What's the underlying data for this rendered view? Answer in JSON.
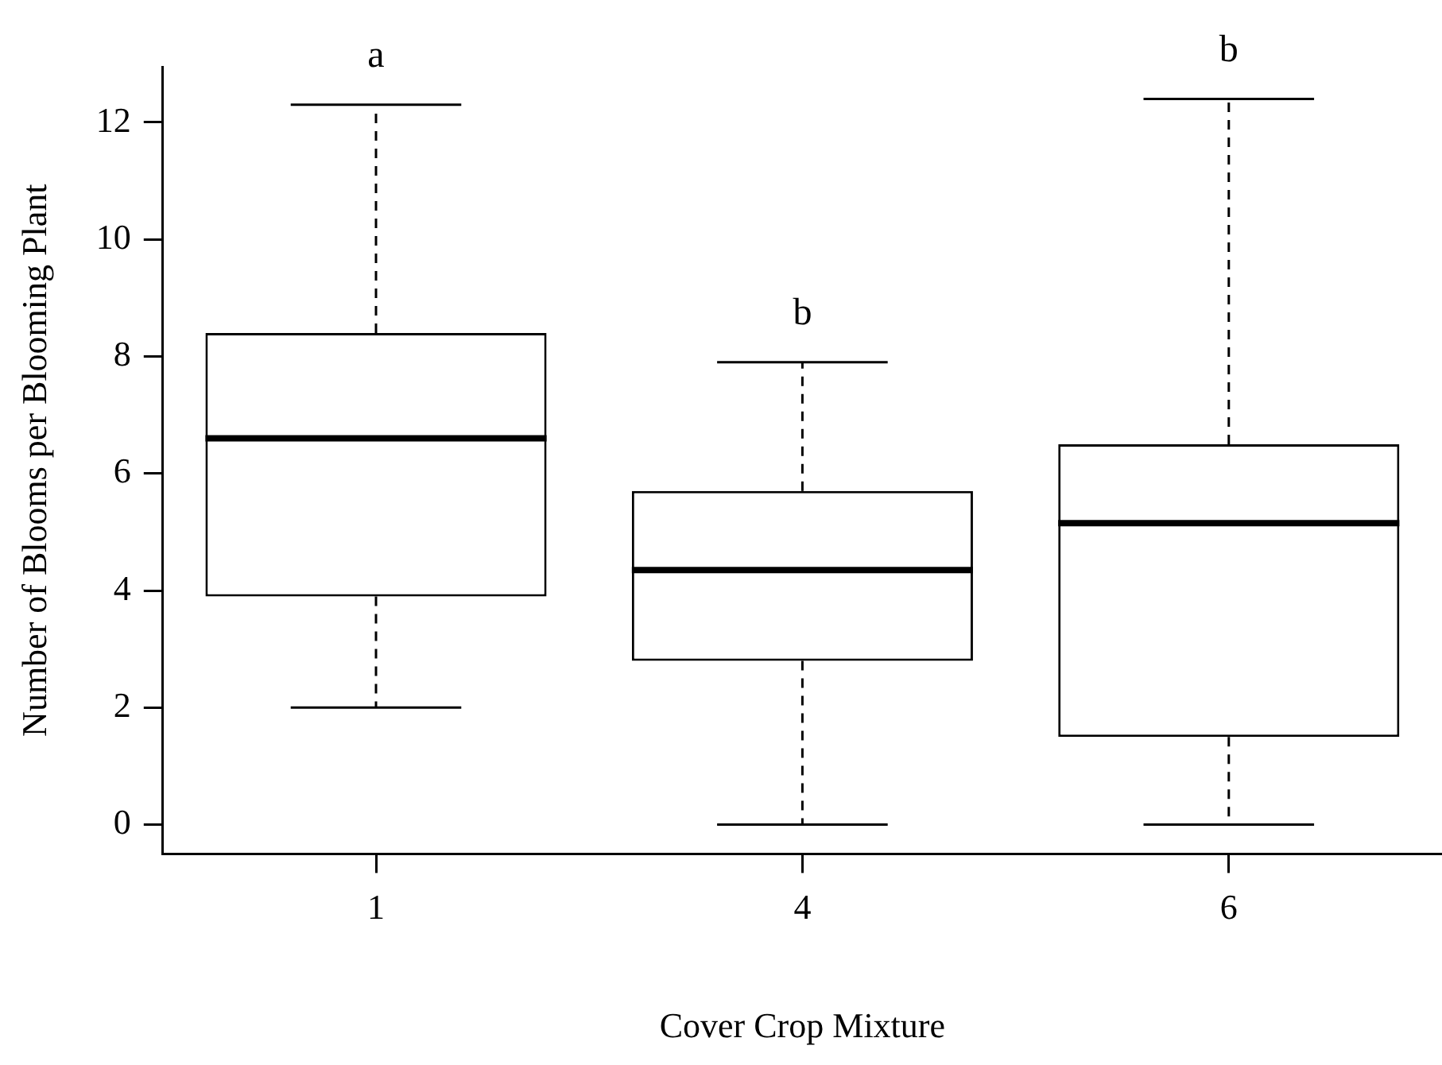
{
  "chart_data": {
    "type": "box",
    "xlabel": "Cover Crop Mixture",
    "ylabel": "Number of Blooms per Blooming Plant",
    "categories": [
      "1",
      "4",
      "6"
    ],
    "boxes": [
      {
        "low": 2.0,
        "q1": 3.9,
        "median": 6.6,
        "q3": 8.4,
        "high": 12.3
      },
      {
        "low": 0,
        "q1": 2.8,
        "median": 4.35,
        "q3": 5.7,
        "high": 7.9
      },
      {
        "low": 0,
        "q1": 1.5,
        "median": 5.15,
        "q3": 6.5,
        "high": 12.4
      }
    ],
    "ylim": [
      -0.5,
      12.95
    ],
    "yticks": [
      0,
      2,
      4,
      6,
      8,
      10,
      12
    ],
    "annotations": [
      {
        "text": "a",
        "x": "1",
        "y": 12.3
      },
      {
        "text": "b",
        "x": "4",
        "y": 7.9
      },
      {
        "text": "b",
        "x": "6",
        "y": 12.4
      }
    ]
  }
}
